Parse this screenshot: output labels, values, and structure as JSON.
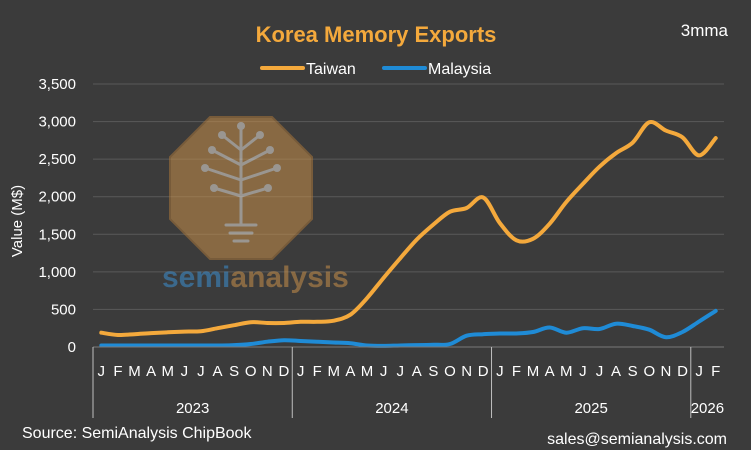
{
  "chart_data": {
    "type": "line",
    "title": "Korea Memory Exports",
    "corner_note": "3mma",
    "ylabel": "Value (M$)",
    "xlabel": "",
    "ylim": [
      0,
      3500
    ],
    "yticks": [
      0,
      500,
      1000,
      1500,
      2000,
      2500,
      3000,
      3500
    ],
    "ytick_labels": [
      "0",
      "500",
      "1,000",
      "1,500",
      "2,000",
      "2,500",
      "3,000",
      "3,500"
    ],
    "grid": true,
    "legend_position": "top-center",
    "categories": [
      "J",
      "F",
      "M",
      "A",
      "M",
      "J",
      "J",
      "A",
      "S",
      "O",
      "N",
      "D",
      "J",
      "F",
      "M",
      "A",
      "M",
      "J",
      "J",
      "A",
      "S",
      "O",
      "N",
      "D",
      "J",
      "F",
      "M",
      "A",
      "M",
      "J",
      "J",
      "A",
      "S",
      "O",
      "N",
      "D",
      "J",
      "F"
    ],
    "year_groups": [
      {
        "label": "2023",
        "months": 12
      },
      {
        "label": "2024",
        "months": 12
      },
      {
        "label": "2025",
        "months": 12
      },
      {
        "label": "2026",
        "months": 2
      }
    ],
    "series": [
      {
        "name": "Taiwan",
        "color": "#f4a93c",
        "values": [
          190,
          160,
          170,
          185,
          195,
          205,
          210,
          250,
          290,
          330,
          320,
          320,
          335,
          335,
          350,
          430,
          650,
          920,
          1180,
          1430,
          1630,
          1800,
          1850,
          1990,
          1650,
          1420,
          1440,
          1640,
          1930,
          2170,
          2400,
          2580,
          2720,
          2990,
          2880,
          2790,
          2550,
          2780
        ]
      },
      {
        "name": "Malaysia",
        "color": "#1f8bd6",
        "values": [
          20,
          20,
          20,
          20,
          20,
          20,
          20,
          20,
          25,
          40,
          70,
          90,
          80,
          70,
          60,
          50,
          20,
          15,
          20,
          25,
          30,
          40,
          150,
          170,
          180,
          180,
          200,
          260,
          190,
          250,
          240,
          310,
          280,
          230,
          130,
          200,
          340,
          480
        ]
      }
    ]
  },
  "watermark": {
    "text_a": "semi",
    "text_b": "analysis",
    "icon": "circuit-tree-logo"
  },
  "footer": {
    "source": "Source: SemiAnalysis ChipBook",
    "contact": "sales@semianalysis.com"
  }
}
